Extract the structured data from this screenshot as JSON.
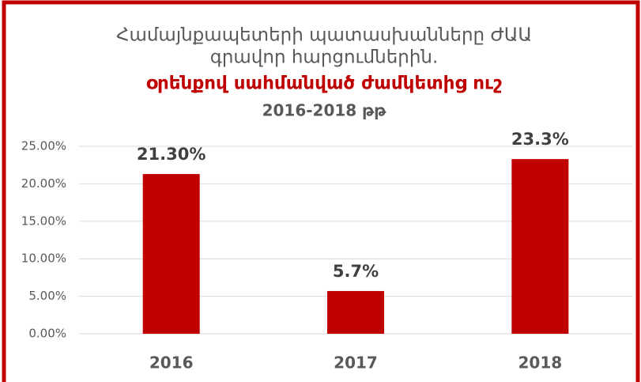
{
  "chart_data": {
    "type": "bar",
    "title": [
      "Համայնքապետերի պատասխանները ԺԱԱ",
      "գրավոր հարցումներին."
    ],
    "subtitle": "օրենքով սահմանված ժամկետից ուշ",
    "period": "2016-2018 թթ",
    "categories": [
      "2016",
      "2017",
      "2018"
    ],
    "values": [
      21.3,
      5.7,
      23.3
    ],
    "value_labels": [
      "21.30%",
      "5.7%",
      "23.3%"
    ],
    "color": "#c00000",
    "ylim": [
      0,
      25
    ],
    "yticks": [
      {
        "value": 0,
        "label": "0.00%"
      },
      {
        "value": 5,
        "label": "5.00%"
      },
      {
        "value": 10,
        "label": "10.00%"
      },
      {
        "value": 15,
        "label": "15.00%"
      },
      {
        "value": 20,
        "label": "20.00%"
      },
      {
        "value": 25,
        "label": "25.00%"
      }
    ],
    "grid": true
  }
}
